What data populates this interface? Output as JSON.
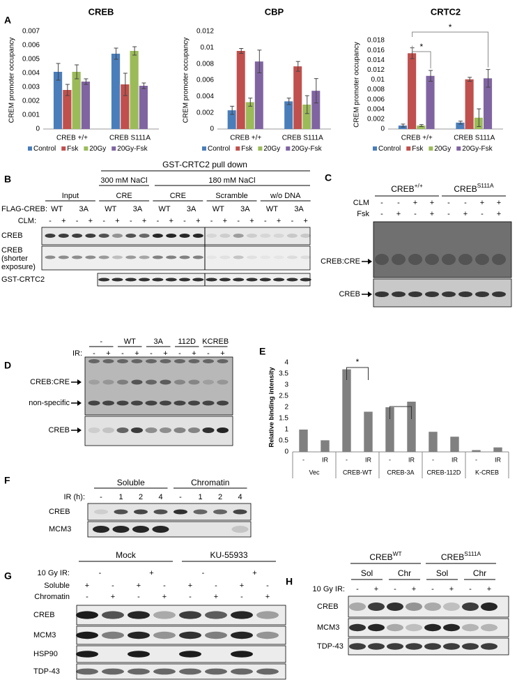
{
  "panel_labels": [
    "A",
    "B",
    "C",
    "D",
    "E",
    "F",
    "G",
    "H"
  ],
  "chart_data": [
    {
      "type": "bar",
      "title": "CREB",
      "ylabel": "CREM promoter occupancy",
      "categories": [
        "CREB +/+",
        "CREB S111A"
      ],
      "series": [
        {
          "name": "Control",
          "color": "#4a7ebb",
          "values": [
            0.0041,
            0.0054
          ],
          "errors": [
            0.0006,
            0.0004
          ]
        },
        {
          "name": "Fsk",
          "color": "#c0504d",
          "values": [
            0.0028,
            0.0032
          ],
          "errors": [
            0.0004,
            0.0008
          ]
        },
        {
          "name": "20Gy",
          "color": "#9bbb59",
          "values": [
            0.0041,
            0.0056
          ],
          "errors": [
            0.0005,
            0.0003
          ]
        },
        {
          "name": "20Gy-Fsk",
          "color": "#8064a2",
          "values": [
            0.0034,
            0.0031
          ],
          "errors": [
            0.0002,
            0.0002
          ]
        }
      ],
      "ylim": [
        0,
        0.007
      ],
      "yticks": [
        0,
        0.001,
        0.002,
        0.003,
        0.004,
        0.005,
        0.006,
        0.007
      ],
      "legend": "bottom"
    },
    {
      "type": "bar",
      "title": "CBP",
      "ylabel": "CREM promoter occupancy",
      "categories": [
        "CREB +/+",
        "CREB S111A"
      ],
      "series": [
        {
          "name": "Control",
          "color": "#4a7ebb",
          "values": [
            0.0023,
            0.0034
          ],
          "errors": [
            0.0005,
            0.0004
          ]
        },
        {
          "name": "Fsk",
          "color": "#c0504d",
          "values": [
            0.0096,
            0.0077
          ],
          "errors": [
            0.0003,
            0.0006
          ]
        },
        {
          "name": "20Gy",
          "color": "#9bbb59",
          "values": [
            0.0033,
            0.003
          ],
          "errors": [
            0.0005,
            0.0011
          ]
        },
        {
          "name": "20Gy-Fsk",
          "color": "#8064a2",
          "values": [
            0.0083,
            0.0047
          ],
          "errors": [
            0.0014,
            0.0015
          ]
        }
      ],
      "ylim": [
        0,
        0.012
      ],
      "yticks": [
        0,
        0.002,
        0.004,
        0.006,
        0.008,
        0.01,
        0.012
      ],
      "legend": "bottom"
    },
    {
      "type": "bar",
      "title": "CRTC2",
      "ylabel": "CREM promoter occupancy",
      "categories": [
        "CREB +/+",
        "CREB S111A"
      ],
      "series": [
        {
          "name": "Control",
          "color": "#4a7ebb",
          "values": [
            0.0007,
            0.0013
          ],
          "errors": [
            0.0003,
            0.0003
          ]
        },
        {
          "name": "Fsk",
          "color": "#c0504d",
          "values": [
            0.0154,
            0.0101
          ],
          "errors": [
            0.0011,
            0.0004
          ]
        },
        {
          "name": "20Gy",
          "color": "#9bbb59",
          "values": [
            0.0007,
            0.0023
          ],
          "errors": [
            0.0002,
            0.0018
          ]
        },
        {
          "name": "20Gy-Fsk",
          "color": "#8064a2",
          "values": [
            0.0108,
            0.0103
          ],
          "errors": [
            0.0011,
            0.0018
          ]
        }
      ],
      "ylim": [
        0,
        0.018
      ],
      "yticks": [
        0,
        0.002,
        0.004,
        0.006,
        0.008,
        0.01,
        0.012,
        0.014,
        0.016,
        0.018
      ],
      "legend": "bottom",
      "annotations": [
        "*",
        "*"
      ]
    },
    {
      "type": "bar",
      "ylabel": "Relative binding intensity",
      "categories": [
        "-",
        "IR",
        "-",
        "IR",
        "-",
        "IR",
        "-",
        "IR",
        "-",
        "IR"
      ],
      "groups": [
        "Vec",
        "CREB-WT",
        "CREB-3A",
        "CREB-112D",
        "K-CREB"
      ],
      "values": [
        1.0,
        0.52,
        3.7,
        1.8,
        2.0,
        2.25,
        0.9,
        0.68,
        0.08,
        0.2
      ],
      "color": "#808080",
      "ylim": [
        0,
        4
      ],
      "yticks": [
        0,
        0.5,
        1,
        1.5,
        2,
        2.5,
        3,
        3.5,
        4
      ],
      "annotations": [
        "*"
      ]
    }
  ],
  "blot_b": {
    "title": "GST-CRTC2 pull down",
    "salt": [
      "300 mM NaCl",
      "180 mM NaCl"
    ],
    "groups": [
      "Input",
      "CRE",
      "CRE",
      "Scramble",
      "w/o DNA"
    ],
    "flag_label": "FLAG-CREB:",
    "flag": [
      "WT",
      "3A",
      "WT",
      "3A",
      "WT",
      "3A",
      "WT",
      "3A",
      "WT",
      "3A"
    ],
    "clm_label": "CLM:",
    "clm": [
      "-",
      "+",
      "-",
      "+",
      "-",
      "+",
      "-",
      "+",
      "-",
      "+",
      "-",
      "+",
      "-",
      "+",
      "-",
      "+",
      "-",
      "+",
      "-",
      "+"
    ],
    "rows": [
      [
        "CREB"
      ],
      [
        "CREB",
        "(shorter",
        "exposure)"
      ],
      [
        "GST-CRTC2"
      ]
    ]
  },
  "blot_c": {
    "genotypes": [
      {
        "base": "CREB",
        "sup": "+/+"
      },
      {
        "base": "CREB",
        "sup": "S111A"
      }
    ],
    "clm_label": "CLM",
    "clm": [
      "-",
      "-",
      "+",
      "+",
      "-",
      "-",
      "+",
      "+"
    ],
    "fsk_label": "Fsk",
    "fsk": [
      "-",
      "+",
      "-",
      "+",
      "-",
      "+",
      "-",
      "+"
    ],
    "bands": [
      "CREB:CRE",
      "CREB"
    ]
  },
  "blot_d": {
    "groups": [
      "-",
      "WT",
      "3A",
      "112D",
      "KCREB"
    ],
    "ir_label": "IR:",
    "ir": [
      "-",
      "+",
      "-",
      "+",
      "-",
      "+",
      "-",
      "+",
      "-",
      "+"
    ],
    "bands": [
      "CREB:CRE",
      "non-specific",
      "CREB"
    ]
  },
  "blot_f": {
    "fractions": [
      "Soluble",
      "Chromatin"
    ],
    "ir_label": "IR (h):",
    "ir": [
      "-",
      "1",
      "2",
      "4",
      "-",
      "1",
      "2",
      "4"
    ],
    "rows": [
      "CREB",
      "MCM3"
    ]
  },
  "blot_g": {
    "treatments": [
      "Mock",
      "KU-55933"
    ],
    "ir_label": "10 Gy IR:",
    "ir": [
      "-",
      "+",
      "-",
      "+"
    ],
    "soluble_label": "Soluble",
    "soluble": [
      "+",
      "-",
      "+",
      "-",
      "+",
      "-",
      "+",
      "-"
    ],
    "chromatin_label": "Chromatin",
    "chromatin": [
      "-",
      "+",
      "-",
      "+",
      "-",
      "+",
      "-",
      "+"
    ],
    "rows": [
      "CREB",
      "MCM3",
      "HSP90",
      "TDP-43"
    ]
  },
  "blot_h": {
    "genotypes": [
      {
        "base": "CREB",
        "sup": "WT"
      },
      {
        "base": "CREB",
        "sup": "S111A"
      }
    ],
    "fractions": [
      "Sol",
      "Chr",
      "Sol",
      "Chr"
    ],
    "ir_label": "10 Gy IR:",
    "ir": [
      "-",
      "+",
      "-",
      "+",
      "-",
      "+",
      "-",
      "+"
    ],
    "rows": [
      "CREB",
      "MCM3",
      "TDP-43"
    ]
  }
}
